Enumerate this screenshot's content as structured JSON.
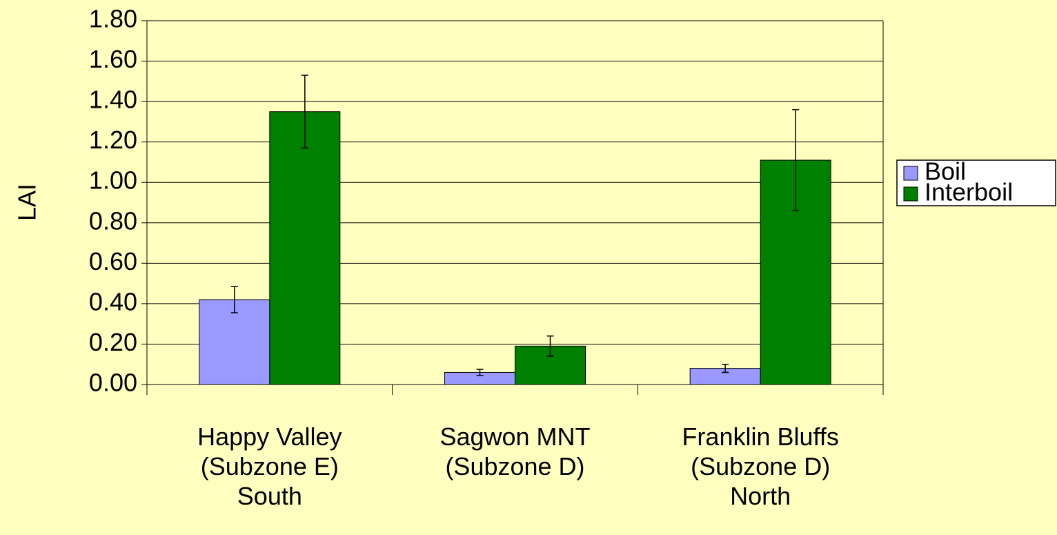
{
  "chart_data": {
    "type": "bar",
    "y_axis_label": "LAI",
    "categories": [
      "Happy Valley\n(Subzone E)\nSouth",
      "Sagwon MNT\n(Subzone D)",
      "Franklin Bluffs\n(Subzone D)\nNorth"
    ],
    "series": [
      {
        "name": "Boil",
        "color": "#9999ff",
        "values": [
          0.42,
          0.06,
          0.08
        ],
        "errors": [
          0.065,
          0.015,
          0.02
        ]
      },
      {
        "name": "Interboil",
        "color": "#008000",
        "values": [
          1.35,
          0.19,
          1.11
        ],
        "errors": [
          0.18,
          0.05,
          0.25
        ]
      }
    ],
    "ylim": [
      0,
      1.8
    ],
    "yticks": [
      {
        "value": 0,
        "label": "0.00"
      },
      {
        "value": 0.2,
        "label": "0.20"
      },
      {
        "value": 0.4,
        "label": "0.40"
      },
      {
        "value": 0.6,
        "label": "0.60"
      },
      {
        "value": 0.8,
        "label": "0.80"
      },
      {
        "value": 1.0,
        "label": "1.00"
      },
      {
        "value": 1.2,
        "label": "1.20"
      },
      {
        "value": 1.4,
        "label": "1.40"
      },
      {
        "value": 1.6,
        "label": "1.60"
      },
      {
        "value": 1.8,
        "label": "1.80"
      }
    ],
    "grid": true,
    "legend": "right"
  }
}
